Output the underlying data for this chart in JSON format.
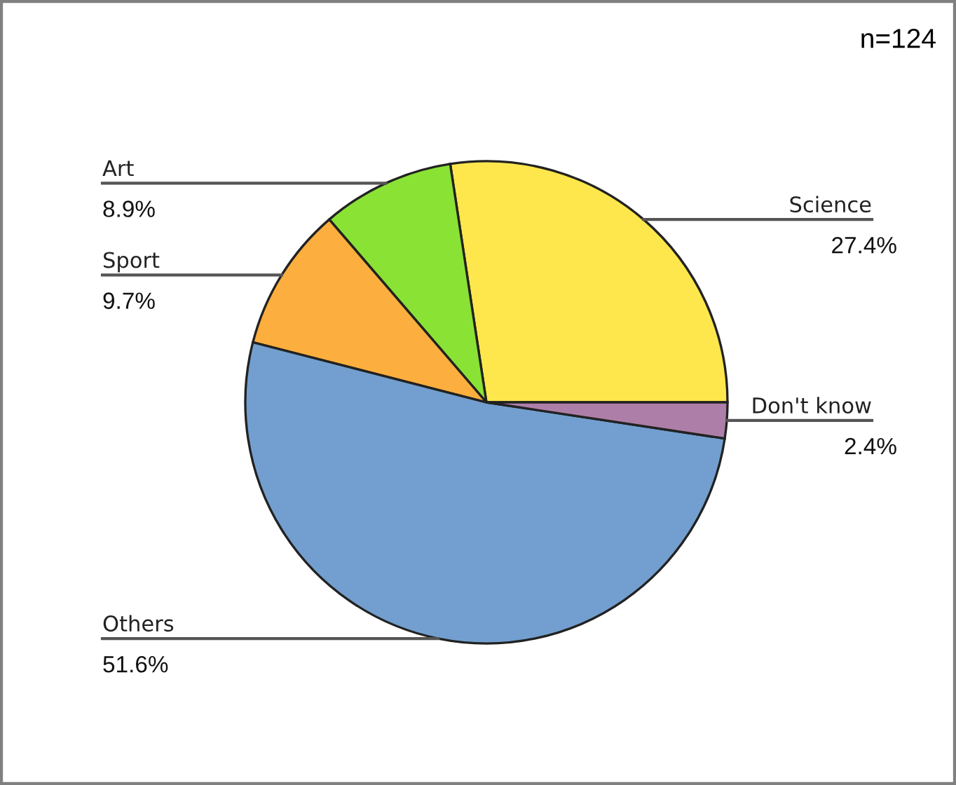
{
  "chart_data": {
    "type": "pie",
    "categories": [
      "Science",
      "Art",
      "Sport",
      "Others",
      "Don't know"
    ],
    "values": [
      27.4,
      8.9,
      9.7,
      51.6,
      2.4
    ],
    "value_labels": [
      "27.4%",
      "8.9%",
      "9.7%",
      "51.6%",
      "2.4%"
    ],
    "colors": [
      "#fde74c",
      "#8ae234",
      "#fcaf3e",
      "#729fcf",
      "#ad7fa8"
    ],
    "annotations": [
      "n=124"
    ]
  }
}
